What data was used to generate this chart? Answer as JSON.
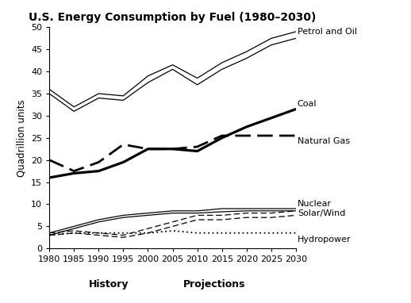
{
  "title": "U.S. Energy Consumption by Fuel (1980–2030)",
  "ylabel": "Quadrillion units",
  "xlabel_history": "History",
  "xlabel_projections": "Projections",
  "years": [
    1980,
    1985,
    1990,
    1995,
    2000,
    2005,
    2010,
    2015,
    2020,
    2025,
    2030
  ],
  "petrol_lower": [
    35.0,
    31.0,
    34.0,
    33.5,
    37.5,
    40.5,
    37.0,
    40.5,
    43.0,
    46.0,
    47.5
  ],
  "petrol_upper": [
    36.0,
    32.0,
    35.0,
    34.5,
    39.0,
    41.5,
    38.5,
    42.0,
    44.5,
    47.5,
    49.0
  ],
  "coal": [
    16.0,
    17.0,
    17.5,
    19.5,
    22.5,
    22.5,
    22.0,
    25.0,
    27.5,
    29.5,
    31.5
  ],
  "natural_gas": [
    20.0,
    17.5,
    19.5,
    23.5,
    22.5,
    22.5,
    23.0,
    25.5,
    25.5,
    25.5,
    25.5
  ],
  "nuclear_lower": [
    3.0,
    4.5,
    6.0,
    7.0,
    7.5,
    8.0,
    8.0,
    8.3,
    8.5,
    8.5,
    8.5
  ],
  "nuclear_upper": [
    3.5,
    5.0,
    6.5,
    7.5,
    8.0,
    8.5,
    8.5,
    9.0,
    9.0,
    9.0,
    9.0
  ],
  "solar_wind_lower": [
    3.0,
    3.5,
    3.0,
    2.5,
    3.5,
    5.0,
    6.5,
    6.5,
    7.0,
    7.0,
    7.5
  ],
  "solar_wind_upper": [
    3.5,
    4.0,
    3.5,
    3.0,
    4.5,
    6.0,
    7.5,
    7.5,
    8.0,
    8.0,
    8.5
  ],
  "hydropower": [
    3.0,
    3.5,
    3.5,
    3.5,
    3.5,
    4.0,
    3.5,
    3.5,
    3.5,
    3.5,
    3.5
  ],
  "bg_color": "#ffffff",
  "title_fontsize": 10,
  "label_fontsize": 8.5,
  "tick_fontsize": 8,
  "annot_fontsize": 8
}
